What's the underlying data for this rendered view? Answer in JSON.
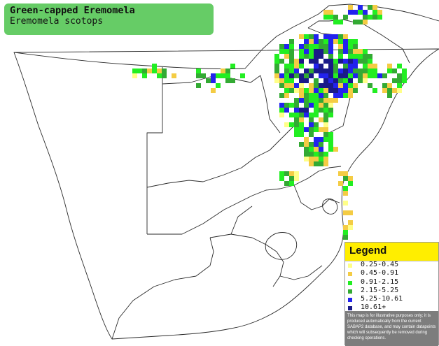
{
  "title": {
    "common_name": "Green-capped Eremomela",
    "scientific_name": "Eremomela scotops"
  },
  "legend": {
    "title": "Legend",
    "items": [
      {
        "label": "0.25-0.45",
        "color": "#ffff88"
      },
      {
        "label": "0.45-0.91",
        "color": "#f4cc44"
      },
      {
        "label": "0.91-2.15",
        "color": "#22ee22"
      },
      {
        "label": "2.15-5.25",
        "color": "#33aa33"
      },
      {
        "label": "5.25-10.61",
        "color": "#2222ee"
      },
      {
        "label": "10.61+",
        "color": "#1a1a88"
      }
    ],
    "disclaimer": "This map is for illustrative purposes only; it is produced automatically from the current SABAP2 database, and may contain datapoints which will subsequently be removed during checking operations."
  },
  "map_colors": {
    "border": "#2a2a2a",
    "land": "#ffffff",
    "title_box": "#66cc66",
    "legend_header": "#ffee00",
    "disclaimer_bg": "#7d7d7d"
  }
}
